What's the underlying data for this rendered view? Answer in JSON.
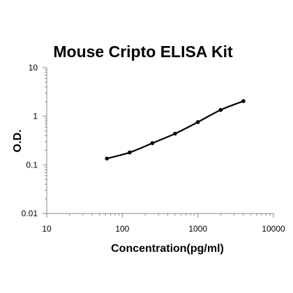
{
  "chart_data": {
    "type": "line",
    "title": "Mouse Cripto ELISA Kit",
    "xlabel": "Concentration(pg/ml)",
    "ylabel": "O.D.",
    "x_scale": "log",
    "y_scale": "log",
    "xlim": [
      10,
      10000
    ],
    "ylim": [
      0.01,
      10
    ],
    "x_ticks": [
      "10",
      "100",
      "1000",
      "10000"
    ],
    "y_ticks": [
      "0.01",
      "0.1",
      "1",
      "10"
    ],
    "grid": false,
    "legend": "none",
    "series": [
      {
        "x": [
          62.5,
          125,
          250,
          500,
          1000,
          2000,
          4000
        ],
        "y": [
          0.135,
          0.18,
          0.28,
          0.44,
          0.76,
          1.35,
          2.05
        ]
      }
    ],
    "colors": {
      "line": "#000000",
      "axis": "#888888"
    }
  }
}
